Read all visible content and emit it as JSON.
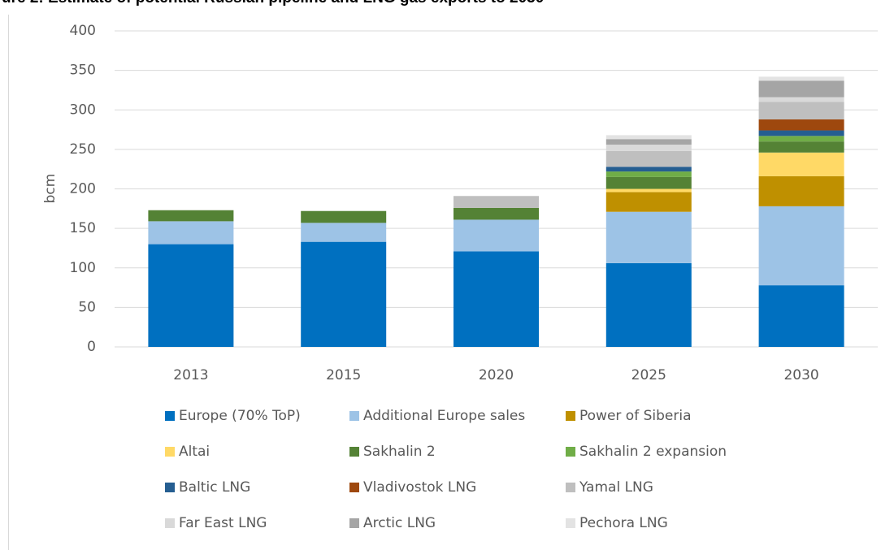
{
  "chart_data": {
    "type": "stacked_bar",
    "title": "ure 2: Estimate of potential Russian pipeline and LNG gas exports to 2030",
    "y_label": "bcm",
    "categories": [
      "2013",
      "2015",
      "2020",
      "2025",
      "2030"
    ],
    "series": [
      {
        "name": "Europe (70% ToP)",
        "color": "#0070c0",
        "values": [
          130,
          133,
          121,
          106,
          78
        ]
      },
      {
        "name": "Additional Europe sales",
        "color": "#9dc3e6",
        "values": [
          29,
          24,
          40,
          65,
          100
        ]
      },
      {
        "name": "Power of Siberia",
        "color": "#bf9000",
        "values": [
          0,
          0,
          0,
          25,
          38
        ]
      },
      {
        "name": "Altai",
        "color": "#ffd966",
        "values": [
          0,
          0,
          0,
          4,
          30
        ]
      },
      {
        "name": "Sakhalin 2",
        "color": "#548235",
        "values": [
          14,
          15,
          15,
          15,
          14
        ]
      },
      {
        "name": "Sakhalin 2 expansion",
        "color": "#70ad47",
        "values": [
          0,
          0,
          0,
          7,
          7
        ]
      },
      {
        "name": "Baltic LNG",
        "color": "#255e91",
        "values": [
          0,
          0,
          0,
          6,
          7
        ]
      },
      {
        "name": "Vladivostok LNG",
        "color": "#9e480e",
        "values": [
          0,
          0,
          0,
          0,
          14
        ]
      },
      {
        "name": "Yamal LNG",
        "color": "#bfbfbf",
        "values": [
          0,
          0,
          15,
          20,
          22
        ]
      },
      {
        "name": "Far East LNG",
        "color": "#d9d9d9",
        "values": [
          0,
          0,
          0,
          8,
          6
        ]
      },
      {
        "name": "Arctic LNG",
        "color": "#a5a5a5",
        "values": [
          0,
          0,
          0,
          7,
          21
        ]
      },
      {
        "name": "Pechora LNG",
        "color": "#e3e3e3",
        "values": [
          0,
          0,
          0,
          5,
          5
        ]
      }
    ],
    "ylim": [
      0,
      400
    ],
    "yticks": [
      0,
      50,
      100,
      150,
      200,
      250,
      300,
      350,
      400
    ],
    "grid": true
  }
}
